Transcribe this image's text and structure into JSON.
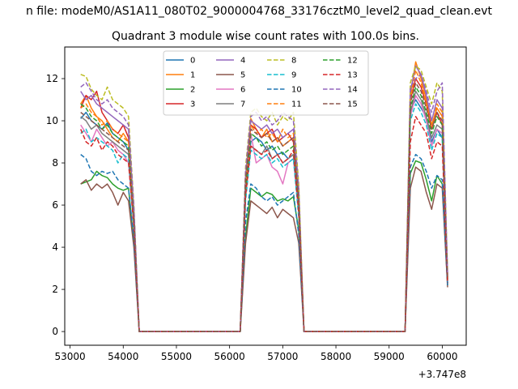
{
  "figure_title": "n file: modeM0/AS1A11_080T02_9000004768_33176cztM0_level2_quad_clean.evt",
  "chart_data": {
    "type": "line",
    "title": "Quadrant 3 module wise count rates with 100.0s bins.",
    "xlabel": "",
    "ylabel": "",
    "x_offset_label": "+3.747e8",
    "xlim": [
      52900,
      60450
    ],
    "ylim": [
      -0.65,
      13.5
    ],
    "xticks": [
      53000,
      54000,
      55000,
      56000,
      57000,
      58000,
      59000,
      60000
    ],
    "yticks": [
      0,
      2,
      4,
      6,
      8,
      10,
      12
    ],
    "grid": false,
    "legend_position": "top-center",
    "x": [
      53200,
      53300,
      53400,
      53500,
      53600,
      53700,
      53800,
      53900,
      54000,
      54100,
      54200,
      54300,
      56200,
      56300,
      56400,
      56500,
      56600,
      56700,
      56800,
      56900,
      57000,
      57100,
      57200,
      57300,
      57400,
      59300,
      59400,
      59500,
      59600,
      59700,
      59800,
      59900,
      60000,
      60100
    ],
    "series": [
      {
        "name": "0",
        "color": "#1f77b4",
        "dash": "solid",
        "values": [
          10.1,
          10.4,
          10.0,
          9.8,
          9.6,
          9.9,
          9.4,
          9.2,
          9.0,
          8.6,
          5.2,
          0,
          0,
          6.5,
          9.0,
          9.2,
          9.0,
          8.6,
          8.8,
          8.4,
          8.5,
          8.2,
          8.4,
          6.0,
          0,
          0,
          10.5,
          11.0,
          10.6,
          10.2,
          9.0,
          9.6,
          9.2,
          2.3
        ]
      },
      {
        "name": "1",
        "color": "#ff7f0e",
        "dash": "solid",
        "values": [
          10.8,
          11.2,
          10.6,
          10.2,
          10.0,
          9.6,
          9.2,
          9.0,
          9.4,
          9.0,
          5.5,
          0,
          0,
          7.2,
          10.1,
          9.6,
          9.2,
          9.6,
          9.0,
          9.2,
          8.8,
          9.0,
          9.2,
          6.4,
          0,
          0,
          11.2,
          12.8,
          12.0,
          11.0,
          9.8,
          10.6,
          10.2,
          2.5
        ]
      },
      {
        "name": "2",
        "color": "#2ca02c",
        "dash": "solid",
        "values": [
          7.0,
          7.1,
          7.2,
          7.6,
          7.4,
          7.3,
          7.0,
          6.8,
          6.7,
          6.8,
          4.2,
          0,
          0,
          4.5,
          6.8,
          6.6,
          6.4,
          6.6,
          6.5,
          6.2,
          6.3,
          6.2,
          6.4,
          4.8,
          0,
          0,
          7.5,
          8.1,
          8.0,
          7.2,
          6.2,
          7.4,
          7.0,
          2.2
        ]
      },
      {
        "name": "3",
        "color": "#d62728",
        "dash": "solid",
        "values": [
          10.6,
          11.2,
          11.0,
          11.4,
          10.4,
          10.0,
          9.6,
          9.4,
          9.8,
          9.2,
          5.6,
          0,
          0,
          7.0,
          9.8,
          9.6,
          9.2,
          9.4,
          9.6,
          9.0,
          9.2,
          9.4,
          9.0,
          6.2,
          0,
          0,
          11.0,
          12.0,
          11.6,
          10.8,
          9.6,
          10.4,
          9.8,
          2.6
        ]
      },
      {
        "name": "4",
        "color": "#9467bd",
        "dash": "solid",
        "values": [
          11.4,
          11.0,
          11.2,
          10.8,
          10.6,
          10.4,
          10.2,
          10.0,
          9.8,
          9.6,
          5.8,
          0,
          0,
          7.4,
          10.0,
          9.8,
          9.6,
          9.8,
          9.4,
          9.6,
          9.2,
          9.4,
          9.6,
          6.6,
          0,
          0,
          11.4,
          12.6,
          12.2,
          11.2,
          10.0,
          11.0,
          10.6,
          2.7
        ]
      },
      {
        "name": "5",
        "color": "#8c564b",
        "dash": "solid",
        "values": [
          7.0,
          7.2,
          6.7,
          7.0,
          6.8,
          7.0,
          6.6,
          6.0,
          6.6,
          6.2,
          4.0,
          0,
          0,
          4.2,
          6.2,
          6.0,
          5.8,
          5.6,
          5.9,
          5.4,
          5.8,
          5.6,
          5.4,
          4.2,
          0,
          0,
          6.8,
          7.8,
          7.6,
          6.6,
          5.8,
          7.0,
          6.8,
          2.1
        ]
      },
      {
        "name": "6",
        "color": "#e377c2",
        "dash": "solid",
        "values": [
          9.8,
          9.4,
          9.0,
          9.6,
          9.2,
          8.8,
          9.0,
          8.6,
          8.4,
          8.0,
          5.0,
          0,
          0,
          6.8,
          9.4,
          8.0,
          8.2,
          8.4,
          7.8,
          7.6,
          7.0,
          8.0,
          8.2,
          5.6,
          0,
          0,
          10.2,
          11.2,
          10.8,
          10.0,
          8.8,
          9.6,
          9.4,
          2.4
        ]
      },
      {
        "name": "7",
        "color": "#7f7f7f",
        "dash": "solid",
        "values": [
          10.2,
          10.0,
          9.6,
          9.8,
          9.4,
          9.2,
          9.0,
          8.8,
          8.6,
          8.4,
          5.2,
          0,
          0,
          6.6,
          8.8,
          8.6,
          8.4,
          8.8,
          8.2,
          8.4,
          8.0,
          8.2,
          8.4,
          5.8,
          0,
          0,
          10.4,
          11.4,
          11.0,
          10.2,
          9.2,
          9.8,
          9.6,
          2.4
        ]
      },
      {
        "name": "8",
        "color": "#bcbd22",
        "dash": "dashed",
        "values": [
          12.2,
          12.1,
          11.5,
          11.2,
          11.0,
          11.6,
          11.0,
          10.8,
          10.6,
          10.2,
          6.0,
          0,
          0,
          7.8,
          10.4,
          10.6,
          10.2,
          10.0,
          10.4,
          9.8,
          10.2,
          10.0,
          10.4,
          7.0,
          0,
          0,
          11.8,
          12.6,
          12.4,
          11.6,
          10.8,
          11.8,
          11.4,
          2.8
        ]
      },
      {
        "name": "9",
        "color": "#17becf",
        "dash": "dashed",
        "values": [
          9.4,
          9.6,
          9.0,
          9.2,
          9.0,
          8.8,
          8.6,
          8.0,
          8.4,
          8.2,
          5.0,
          0,
          0,
          6.2,
          8.6,
          8.4,
          8.2,
          8.4,
          8.0,
          8.2,
          7.8,
          8.0,
          8.2,
          5.4,
          0,
          0,
          10.0,
          10.8,
          10.4,
          9.8,
          8.6,
          9.4,
          9.2,
          2.3
        ]
      },
      {
        "name": "10",
        "color": "#1f77b4",
        "dash": "dashed",
        "values": [
          8.4,
          8.2,
          7.6,
          7.4,
          7.6,
          7.5,
          7.6,
          7.2,
          7.0,
          6.8,
          4.4,
          0,
          0,
          5.2,
          7.0,
          6.8,
          6.4,
          6.2,
          6.4,
          6.0,
          6.2,
          6.4,
          6.6,
          4.6,
          0,
          0,
          7.8,
          8.4,
          8.2,
          7.6,
          6.8,
          7.4,
          7.2,
          2.2
        ]
      },
      {
        "name": "11",
        "color": "#ff7f0e",
        "dash": "dashed",
        "values": [
          10.6,
          10.8,
          10.4,
          10.2,
          9.8,
          10.0,
          9.6,
          9.4,
          9.2,
          9.0,
          5.4,
          0,
          0,
          7.0,
          9.8,
          9.4,
          9.6,
          9.2,
          9.4,
          9.0,
          9.6,
          9.2,
          9.4,
          6.2,
          0,
          0,
          11.0,
          12.4,
          11.8,
          10.8,
          9.6,
          10.8,
          10.4,
          2.6
        ]
      },
      {
        "name": "12",
        "color": "#2ca02c",
        "dash": "dashed",
        "values": [
          10.8,
          10.6,
          10.2,
          10.0,
          9.6,
          9.8,
          9.4,
          9.2,
          9.0,
          8.8,
          5.3,
          0,
          0,
          6.8,
          9.4,
          9.2,
          8.8,
          9.0,
          8.6,
          8.8,
          8.4,
          8.6,
          8.8,
          6.0,
          0,
          0,
          10.6,
          11.6,
          11.2,
          10.4,
          9.4,
          10.2,
          9.8,
          2.5
        ]
      },
      {
        "name": "13",
        "color": "#d62728",
        "dash": "dashed",
        "values": [
          9.6,
          9.0,
          8.8,
          9.2,
          8.6,
          9.0,
          8.8,
          8.4,
          8.2,
          8.0,
          5.0,
          0,
          0,
          6.4,
          8.8,
          8.6,
          8.4,
          8.6,
          8.2,
          8.4,
          8.0,
          8.2,
          8.6,
          5.6,
          0,
          0,
          9.0,
          10.2,
          9.8,
          9.4,
          8.2,
          9.0,
          8.8,
          2.3
        ]
      },
      {
        "name": "14",
        "color": "#9467bd",
        "dash": "dashed",
        "values": [
          11.6,
          11.8,
          11.4,
          11.0,
          10.8,
          11.0,
          10.6,
          10.4,
          10.2,
          9.8,
          5.9,
          0,
          0,
          7.6,
          10.2,
          10.4,
          10.0,
          10.2,
          9.8,
          10.0,
          10.4,
          10.2,
          10.0,
          6.8,
          0,
          0,
          11.6,
          12.0,
          12.2,
          11.4,
          10.4,
          11.4,
          11.8,
          2.7
        ]
      },
      {
        "name": "15",
        "color": "#8c564b",
        "dash": "dashed",
        "values": [
          10.4,
          10.2,
          10.0,
          9.8,
          9.6,
          9.4,
          9.2,
          9.0,
          8.8,
          8.6,
          5.2,
          0,
          0,
          7.2,
          9.6,
          9.4,
          9.2,
          9.4,
          9.0,
          9.2,
          8.8,
          9.0,
          9.2,
          6.2,
          0,
          0,
          10.8,
          11.8,
          11.4,
          10.6,
          9.6,
          10.4,
          10.0,
          2.5
        ]
      }
    ]
  }
}
